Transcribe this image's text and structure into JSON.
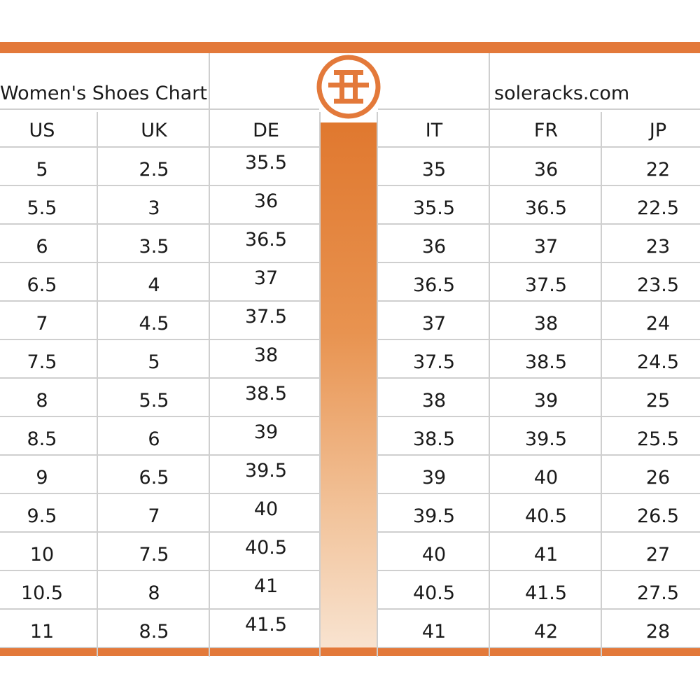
{
  "header": {
    "chart_title": "Women's Shoes Chart",
    "site": "soleracks.com",
    "logo_icon": "tory-burch-logo-icon"
  },
  "colors": {
    "accent": "#e3793a",
    "grid": "#cfcfcf"
  },
  "table": {
    "columns": [
      "US",
      "UK",
      "DE",
      "IT",
      "FR",
      "JP"
    ],
    "rows": [
      [
        "5",
        "2.5",
        "35.5",
        "35",
        "36",
        "22"
      ],
      [
        "5.5",
        "3",
        "36",
        "35.5",
        "36.5",
        "22.5"
      ],
      [
        "6",
        "3.5",
        "36.5",
        "36",
        "37",
        "23"
      ],
      [
        "6.5",
        "4",
        "37",
        "36.5",
        "37.5",
        "23.5"
      ],
      [
        "7",
        "4.5",
        "37.5",
        "37",
        "38",
        "24"
      ],
      [
        "7.5",
        "5",
        "38",
        "37.5",
        "38.5",
        "24.5"
      ],
      [
        "8",
        "5.5",
        "38.5",
        "38",
        "39",
        "25"
      ],
      [
        "8.5",
        "6",
        "39",
        "38.5",
        "39.5",
        "25.5"
      ],
      [
        "9",
        "6.5",
        "39.5",
        "39",
        "40",
        "26"
      ],
      [
        "9.5",
        "7",
        "40",
        "39.5",
        "40.5",
        "26.5"
      ],
      [
        "10",
        "7.5",
        "40.5",
        "40",
        "41",
        "27"
      ],
      [
        "10.5",
        "8",
        "41",
        "40.5",
        "41.5",
        "27.5"
      ],
      [
        "11",
        "8.5",
        "41.5",
        "41",
        "42",
        "28"
      ]
    ]
  }
}
